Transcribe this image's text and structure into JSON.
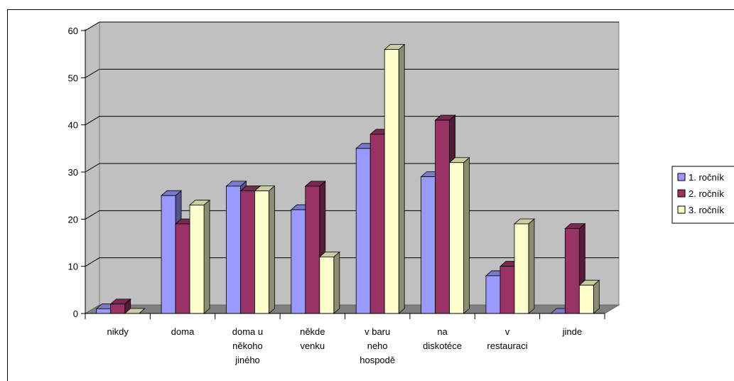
{
  "chart_data": {
    "type": "bar",
    "style": "3d-clustered-column",
    "categories": [
      [
        "nikdy"
      ],
      [
        "doma"
      ],
      [
        "doma u",
        "někoho",
        "jiného"
      ],
      [
        "někde",
        "venku"
      ],
      [
        "v baru",
        "neho",
        "hospodě"
      ],
      [
        "na",
        "diskotéce"
      ],
      [
        "v",
        "restauraci"
      ],
      [
        "jinde"
      ]
    ],
    "series": [
      {
        "name": "1. ročník",
        "color": "#9999ff",
        "values": [
          1,
          25,
          27,
          22,
          35,
          29,
          8,
          0
        ]
      },
      {
        "name": "2. ročník",
        "color": "#993366",
        "values": [
          2,
          19,
          26,
          27,
          38,
          41,
          10,
          18
        ]
      },
      {
        "name": "3. ročník",
        "color": "#ffffcc",
        "values": [
          0,
          23,
          26,
          12,
          56,
          32,
          19,
          6
        ]
      }
    ],
    "ylim": [
      0,
      60
    ],
    "yticks": [
      0,
      10,
      20,
      30,
      40,
      50,
      60
    ],
    "grid": true,
    "legend": "right",
    "wall_color": "#c0c0c0",
    "floor_color": "#808080"
  }
}
